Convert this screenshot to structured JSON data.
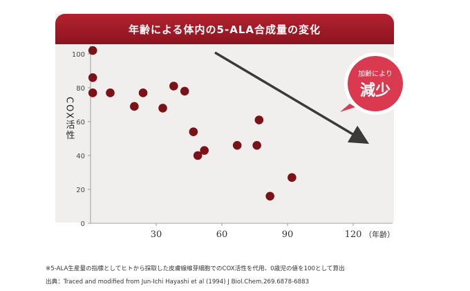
{
  "chart_data": {
    "type": "scatter",
    "title": "年齢による体内の5-ALA合成量の変化",
    "ylabel": "COX活性",
    "xlabel": "（年齢）",
    "xlim": [
      0,
      140
    ],
    "ylim": [
      0,
      110
    ],
    "x_ticks": [
      "30",
      "60",
      "90",
      "120"
    ],
    "y_ticks": [
      "0",
      "20",
      "40",
      "60",
      "80",
      "100"
    ],
    "points": [
      {
        "x": 1,
        "y": 102
      },
      {
        "x": 1,
        "y": 86
      },
      {
        "x": 1,
        "y": 77
      },
      {
        "x": 9,
        "y": 77
      },
      {
        "x": 20,
        "y": 69
      },
      {
        "x": 24,
        "y": 77
      },
      {
        "x": 33,
        "y": 68
      },
      {
        "x": 38,
        "y": 81
      },
      {
        "x": 43,
        "y": 78
      },
      {
        "x": 47,
        "y": 54
      },
      {
        "x": 49,
        "y": 40
      },
      {
        "x": 52,
        "y": 43
      },
      {
        "x": 67,
        "y": 46
      },
      {
        "x": 76,
        "y": 46
      },
      {
        "x": 77,
        "y": 61
      },
      {
        "x": 82,
        "y": 16
      },
      {
        "x": 92,
        "y": 27
      }
    ],
    "annotation": {
      "badge_line1": "加齢により",
      "badge_line2": "減少"
    }
  },
  "colors": {
    "marker": "#7a1217",
    "banner": "#a01c28",
    "arrow": "#3a3a3a",
    "badge": "#d93a4f"
  },
  "footnote": {
    "line1": "※5-ALA生産量の指標としてヒトから採取した皮膚線維芽細胞でのCOX活性を代用、0歳児の値を100として算出",
    "line2": "出典：Traced and modified from Jun-Ichi Hayashi et al (1994) J Biol.Chem.269.6878-6883"
  }
}
